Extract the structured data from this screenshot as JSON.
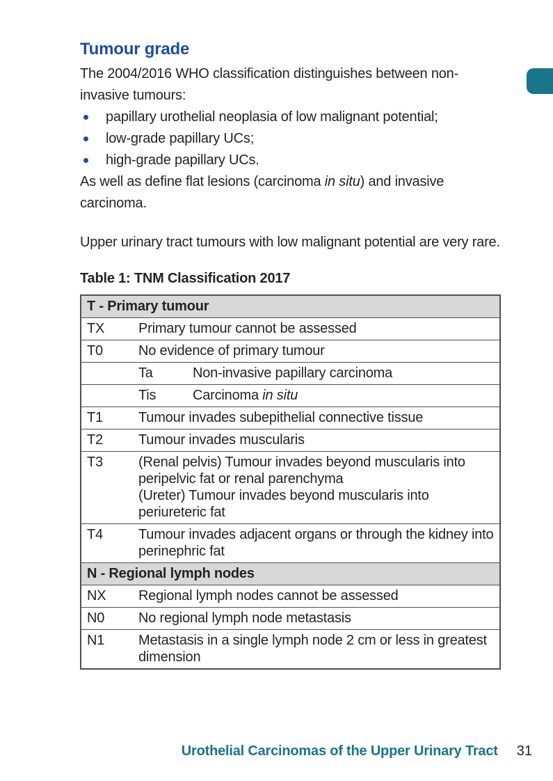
{
  "colors": {
    "accent_blue": "#1c4e9d",
    "teal": "#18758b",
    "table_header_bg": "#d8d8d8",
    "table_border": "#4f4f4f",
    "text": "#232323"
  },
  "content": {
    "heading": "Tumour grade",
    "paragraph1": [
      {
        "text": "The 2004/2016 WHO classification distinguishes between non-invasive tumours:"
      }
    ],
    "bullets": [
      "papillary urothelial neoplasia of low malignant potential;",
      "low-grade papillary UCs;",
      "high-grade papillary UCs."
    ],
    "paragraph2": [
      {
        "text": "As well as define flat lesions (carcinoma "
      },
      {
        "text": "in situ",
        "italic": true
      },
      {
        "text": ") and invasive carcinoma."
      }
    ],
    "paragraph3": [
      {
        "text": "Upper urinary tract tumours with low malignant potential are very rare."
      }
    ],
    "table_caption": "Table 1: TNM Classification 2017",
    "table": {
      "rows": [
        {
          "type": "section",
          "label": "T - Primary tumour"
        },
        {
          "type": "row",
          "code": "TX",
          "desc": [
            {
              "text": "Primary tumour cannot be assessed"
            }
          ]
        },
        {
          "type": "row",
          "code": "T0",
          "desc": [
            {
              "text": "No evidence of primary tumour"
            }
          ]
        },
        {
          "type": "subrow",
          "code": "",
          "sub": "Ta",
          "desc": [
            {
              "text": "Non-invasive papillary carcinoma"
            }
          ]
        },
        {
          "type": "subrow",
          "code": "",
          "sub": "Tis",
          "desc": [
            {
              "text": "Carcinoma "
            },
            {
              "text": "in situ",
              "italic": true
            }
          ]
        },
        {
          "type": "row",
          "code": "T1",
          "desc": [
            {
              "text": "Tumour invades subepithelial connective tissue"
            }
          ]
        },
        {
          "type": "row",
          "code": "T2",
          "desc": [
            {
              "text": "Tumour invades muscularis"
            }
          ]
        },
        {
          "type": "row",
          "code": "T3",
          "desc": [
            {
              "text": "(Renal pelvis) Tumour invades beyond muscularis into peripelvic fat or renal parenchyma"
            },
            {
              "text": "(Ureter) Tumour invades beyond muscularis into periureteric fat",
              "break": true
            }
          ]
        },
        {
          "type": "row",
          "code": "T4",
          "desc": [
            {
              "text": "Tumour invades adjacent organs or through the kidney into perinephric fat"
            }
          ]
        },
        {
          "type": "section",
          "label": "N - Regional lymph nodes"
        },
        {
          "type": "row",
          "code": "NX",
          "desc": [
            {
              "text": "Regional lymph nodes cannot be assessed"
            }
          ]
        },
        {
          "type": "row",
          "code": "N0",
          "desc": [
            {
              "text": "No regional lymph node metastasis"
            }
          ]
        },
        {
          "type": "row",
          "code": "N1",
          "desc": [
            {
              "text": "Metastasis in a single lymph node 2 cm or less in greatest dimension"
            }
          ]
        }
      ]
    }
  },
  "footer": {
    "title": "Urothelial Carcinomas of the Upper Urinary Tract",
    "page_number": "31"
  }
}
